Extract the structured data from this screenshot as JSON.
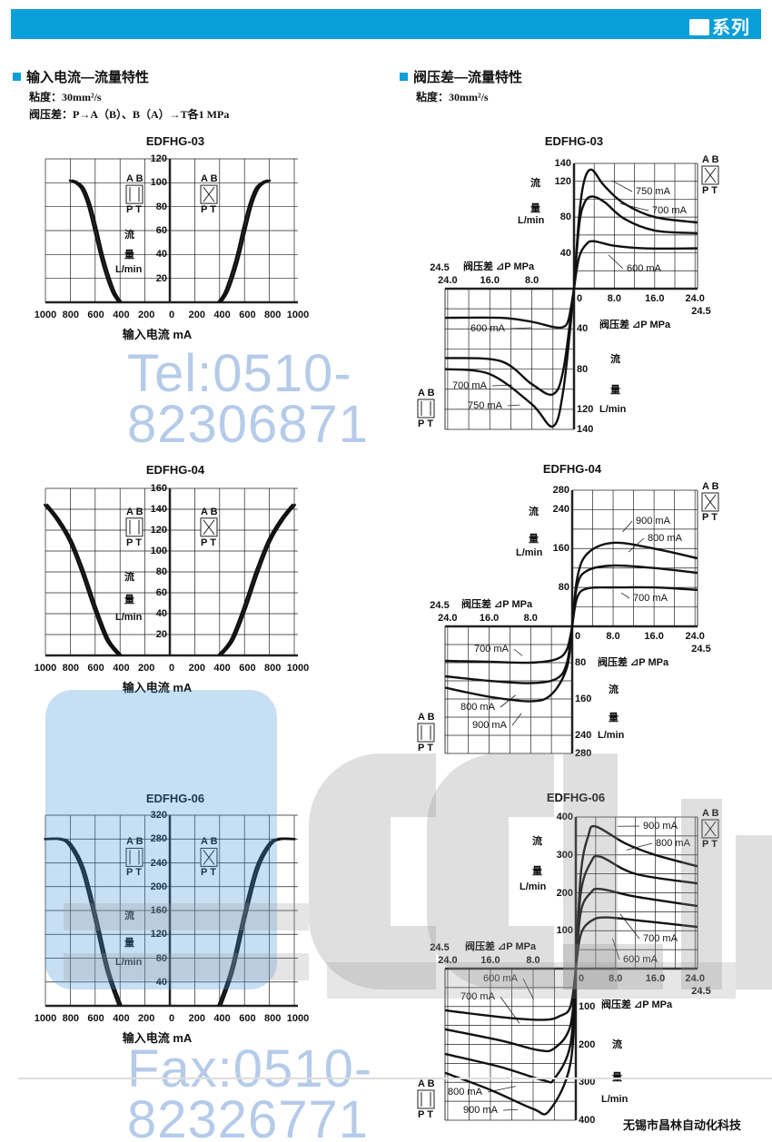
{
  "header": {
    "series_label": "系列",
    "brand_color": "#0a9fd8"
  },
  "left_section": {
    "title": "输入电流—流量特性",
    "viscosity": "粘度：30mm²/s",
    "pressure": "阀压差：P→A（B）、B（A）→T各1 MPa"
  },
  "right_section": {
    "title": "阀压差—流量特性",
    "viscosity": "粘度：30mm²/s"
  },
  "watermark": {
    "tel": "Tel:0510-82306871",
    "fax": "Fax:0510-82326771",
    "logo_text": "CCLair 昌林自动化"
  },
  "footer": {
    "company": "无锡市昌林自动化科技"
  },
  "chart_data": [
    {
      "type": "line",
      "title": "EDFHG-03",
      "xlabel": "输入电流  mA",
      "ylabel": [
        "流",
        "量"
      ],
      "yunit": "L/min",
      "xticks": [
        "1000",
        "800",
        "600",
        "400",
        "200",
        "0",
        "200",
        "400",
        "600",
        "800",
        "1000"
      ],
      "xlim": [
        -1000,
        1000
      ],
      "ylim": [
        0,
        120
      ],
      "yticks": [
        20,
        40,
        60,
        80,
        100,
        120
      ],
      "grid": true,
      "valves": {
        "left": {
          "top": "A B",
          "bottom": "P T",
          "kind": "parallel"
        },
        "right": {
          "top": "A B",
          "bottom": "P T",
          "kind": "cross"
        }
      },
      "series": [
        {
          "side": "left",
          "points": [
            [
              400,
              0
            ],
            [
              450,
              8
            ],
            [
              500,
              22
            ],
            [
              550,
              40
            ],
            [
              600,
              62
            ],
            [
              650,
              82
            ],
            [
              700,
              95
            ],
            [
              750,
              100
            ],
            [
              800,
              102
            ]
          ]
        },
        {
          "side": "right",
          "points": [
            [
              400,
              0
            ],
            [
              450,
              8
            ],
            [
              500,
              22
            ],
            [
              550,
              40
            ],
            [
              600,
              62
            ],
            [
              650,
              82
            ],
            [
              700,
              95
            ],
            [
              750,
              100
            ],
            [
              800,
              102
            ]
          ]
        }
      ]
    },
    {
      "type": "line",
      "title": "EDFHG-04",
      "xlabel": "输入电流  mA",
      "ylabel": [
        "流",
        "量"
      ],
      "yunit": "L/min",
      "xticks": [
        "1000",
        "800",
        "600",
        "400",
        "200",
        "0",
        "200",
        "400",
        "600",
        "800",
        "1000"
      ],
      "xlim": [
        -1000,
        1000
      ],
      "ylim": [
        0,
        160
      ],
      "yticks": [
        20,
        40,
        60,
        80,
        100,
        120,
        140,
        160
      ],
      "grid": true,
      "valves": {
        "left": {
          "top": "A B",
          "bottom": "P T",
          "kind": "parallel"
        },
        "right": {
          "top": "A B",
          "bottom": "P T",
          "kind": "cross"
        }
      },
      "series": [
        {
          "side": "left",
          "points": [
            [
              400,
              0
            ],
            [
              500,
              15
            ],
            [
              600,
              45
            ],
            [
              700,
              80
            ],
            [
              800,
              110
            ],
            [
              900,
              130
            ],
            [
              1000,
              145
            ]
          ]
        },
        {
          "side": "right",
          "points": [
            [
              400,
              0
            ],
            [
              500,
              15
            ],
            [
              600,
              45
            ],
            [
              700,
              80
            ],
            [
              800,
              110
            ],
            [
              900,
              130
            ],
            [
              1000,
              145
            ]
          ]
        }
      ]
    },
    {
      "type": "line",
      "title": "EDFHG-06",
      "xlabel": "输入电流  mA",
      "ylabel": [
        "流",
        "量"
      ],
      "yunit": "L/min",
      "xticks": [
        "1000",
        "800",
        "600",
        "400",
        "200",
        "0",
        "200",
        "400",
        "600",
        "800",
        "1000"
      ],
      "xlim": [
        -1000,
        1000
      ],
      "ylim": [
        0,
        320
      ],
      "yticks": [
        40,
        80,
        120,
        160,
        200,
        240,
        280,
        320
      ],
      "grid": true,
      "valves": {
        "left": {
          "top": "A B",
          "bottom": "P T",
          "kind": "parallel"
        },
        "right": {
          "top": "A B",
          "bottom": "P T",
          "kind": "cross"
        }
      },
      "series": [
        {
          "side": "left",
          "points": [
            [
              400,
              0
            ],
            [
              500,
              60
            ],
            [
              600,
              150
            ],
            [
              700,
              230
            ],
            [
              800,
              270
            ],
            [
              880,
              280
            ],
            [
              1000,
              280
            ]
          ]
        },
        {
          "side": "right",
          "points": [
            [
              400,
              0
            ],
            [
              500,
              60
            ],
            [
              600,
              150
            ],
            [
              700,
              230
            ],
            [
              800,
              270
            ],
            [
              880,
              280
            ],
            [
              1000,
              280
            ]
          ]
        }
      ]
    },
    {
      "type": "line",
      "title": "EDFHG-03",
      "xlabel": "阀压差 ⊿P  MPa",
      "ylabel": [
        "流",
        "量"
      ],
      "yunit": "L/min",
      "xlim": [
        0,
        24.5
      ],
      "xticks": [
        "8.0",
        "16.0",
        "24.0"
      ],
      "x_zero": "0",
      "x_end": "24.5",
      "ylim": [
        0,
        140
      ],
      "yticks_upper": [
        40,
        80,
        120,
        140
      ],
      "yticks_lower": [
        40,
        80,
        120,
        140
      ],
      "grid_step": 20,
      "grid": true,
      "valves": {
        "upper": {
          "top": "A B",
          "bottom": "P T",
          "kind": "cross"
        },
        "lower": {
          "top": "A B",
          "bottom": "P T",
          "kind": "parallel"
        }
      },
      "series": [
        {
          "name": "750 mA",
          "quadrant": "upper-right",
          "points": [
            [
              0,
              0
            ],
            [
              1,
              80
            ],
            [
              2,
              120
            ],
            [
              3.5,
              133
            ],
            [
              6,
              115
            ],
            [
              10,
              95
            ],
            [
              16,
              80
            ],
            [
              24.5,
              74
            ]
          ]
        },
        {
          "name": "700 mA",
          "quadrant": "upper-right",
          "points": [
            [
              0,
              0
            ],
            [
              1,
              70
            ],
            [
              2,
              95
            ],
            [
              3.5,
              103
            ],
            [
              6,
              97
            ],
            [
              10,
              78
            ],
            [
              16,
              65
            ],
            [
              24.5,
              62
            ]
          ]
        },
        {
          "name": "600 mA",
          "quadrant": "upper-right",
          "points": [
            [
              0,
              0
            ],
            [
              1,
              35
            ],
            [
              2.5,
              50
            ],
            [
              4,
              53
            ],
            [
              8,
              48
            ],
            [
              14,
              45
            ],
            [
              24.5,
              45
            ]
          ]
        },
        {
          "name": "600 mA",
          "quadrant": "lower-left",
          "points": [
            [
              0,
              0
            ],
            [
              1,
              30
            ],
            [
              2,
              38
            ],
            [
              4,
              38
            ],
            [
              8,
              33
            ],
            [
              14,
              29
            ],
            [
              24.5,
              29
            ]
          ]
        },
        {
          "name": "700 mA",
          "quadrant": "lower-left",
          "points": [
            [
              0,
              0
            ],
            [
              2,
              80
            ],
            [
              4,
              105
            ],
            [
              8,
              95
            ],
            [
              14,
              72
            ],
            [
              24.5,
              69
            ]
          ]
        },
        {
          "name": "750 mA",
          "quadrant": "lower-left",
          "points": [
            [
              0,
              0
            ],
            [
              2,
              100
            ],
            [
              4,
              137
            ],
            [
              8,
              115
            ],
            [
              16,
              85
            ],
            [
              24.5,
              80
            ]
          ]
        }
      ]
    },
    {
      "type": "line",
      "title": "EDFHG-04",
      "xlabel": "阀压差 ⊿P  MPa",
      "ylabel": [
        "流",
        "量"
      ],
      "yunit": "L/min",
      "xlim": [
        0,
        24.5
      ],
      "xticks": [
        "8.0",
        "16.0",
        "24.0"
      ],
      "x_zero": "0",
      "x_end": "24.5",
      "ylim": [
        0,
        280
      ],
      "yticks_upper": [
        80,
        160,
        240,
        280
      ],
      "yticks_lower": [
        80,
        160,
        240,
        280
      ],
      "grid_step": 40,
      "grid": true,
      "valves": {
        "upper": {
          "top": "A B",
          "bottom": "P T",
          "kind": "cross"
        },
        "lower": {
          "top": "A B",
          "bottom": "P T",
          "kind": "parallel"
        }
      },
      "series": [
        {
          "name": "900 mA",
          "quadrant": "upper-right",
          "points": [
            [
              0,
              0
            ],
            [
              1,
              100
            ],
            [
              3,
              150
            ],
            [
              8,
              172
            ],
            [
              16,
              160
            ],
            [
              24.5,
              140
            ]
          ]
        },
        {
          "name": "800 mA",
          "quadrant": "upper-right",
          "points": [
            [
              0,
              0
            ],
            [
              1,
              85
            ],
            [
              3,
              115
            ],
            [
              8,
              125
            ],
            [
              16,
              120
            ],
            [
              24.5,
              110
            ]
          ]
        },
        {
          "name": "700 mA",
          "quadrant": "upper-right",
          "points": [
            [
              0,
              0
            ],
            [
              1,
              60
            ],
            [
              3,
              78
            ],
            [
              8,
              80
            ],
            [
              16,
              80
            ],
            [
              24.5,
              75
            ]
          ]
        },
        {
          "name": "700 mA",
          "quadrant": "lower-left",
          "points": [
            [
              0,
              0
            ],
            [
              1,
              50
            ],
            [
              3,
              72
            ],
            [
              8,
              80
            ],
            [
              16,
              78
            ],
            [
              24.5,
              76
            ]
          ]
        },
        {
          "name": "800 mA",
          "quadrant": "lower-left",
          "points": [
            [
              0,
              0
            ],
            [
              1,
              80
            ],
            [
              3,
              115
            ],
            [
              8,
              125
            ],
            [
              16,
              120
            ],
            [
              24.5,
              110
            ]
          ]
        },
        {
          "name": "900 mA",
          "quadrant": "lower-left",
          "points": [
            [
              0,
              0
            ],
            [
              1,
              90
            ],
            [
              4,
              150
            ],
            [
              8,
              165
            ],
            [
              16,
              155
            ],
            [
              24.5,
              135
            ]
          ]
        }
      ]
    },
    {
      "type": "line",
      "title": "EDFHG-06",
      "xlabel": "阀压差 ⊿P  MPa",
      "ylabel": [
        "流",
        "量"
      ],
      "yunit": "L/min",
      "xlim": [
        0,
        24.5
      ],
      "xticks": [
        "8.0",
        "16.0",
        "24.0"
      ],
      "x_zero": "0",
      "x_end": "24.5",
      "ylim": [
        0,
        400
      ],
      "yticks_upper": [
        100,
        200,
        300,
        400
      ],
      "yticks_lower": [
        100,
        200,
        300,
        400
      ],
      "grid_step": 50,
      "grid": true,
      "valves": {
        "upper": {
          "top": "A B",
          "bottom": "P T",
          "kind": "cross"
        },
        "lower": {
          "top": "A B",
          "bottom": "P T",
          "kind": "parallel"
        }
      },
      "series": [
        {
          "name": "900 mA",
          "quadrant": "upper-right",
          "points": [
            [
              0,
              0
            ],
            [
              1,
              250
            ],
            [
              2.5,
              350
            ],
            [
              4,
              375
            ],
            [
              10,
              330
            ],
            [
              16,
              300
            ],
            [
              24.5,
              270
            ]
          ]
        },
        {
          "name": "800 mA",
          "quadrant": "upper-right",
          "points": [
            [
              0,
              0
            ],
            [
              1,
              200
            ],
            [
              3,
              280
            ],
            [
              5,
              295
            ],
            [
              12,
              250
            ],
            [
              24.5,
              225
            ]
          ]
        },
        {
          "name": "700 mA",
          "quadrant": "upper-right",
          "points": [
            [
              0,
              0
            ],
            [
              1,
              150
            ],
            [
              3,
              200
            ],
            [
              5,
              210
            ],
            [
              12,
              190
            ],
            [
              24.5,
              165
            ]
          ]
        },
        {
          "name": "600 mA",
          "quadrant": "upper-right",
          "points": [
            [
              0,
              0
            ],
            [
              1,
              90
            ],
            [
              3,
              125
            ],
            [
              6,
              135
            ],
            [
              14,
              125
            ],
            [
              24.5,
              110
            ]
          ]
        },
        {
          "name": "600 mA",
          "quadrant": "lower-left",
          "points": [
            [
              0,
              0
            ],
            [
              1,
              100
            ],
            [
              3,
              125
            ],
            [
              6,
              135
            ],
            [
              14,
              128
            ],
            [
              24.5,
              110
            ]
          ]
        },
        {
          "name": "700 mA",
          "quadrant": "lower-left",
          "points": [
            [
              0,
              0
            ],
            [
              1,
              150
            ],
            [
              4,
              210
            ],
            [
              7,
              215
            ],
            [
              14,
              190
            ],
            [
              24.5,
              160
            ]
          ]
        },
        {
          "name": "800 mA",
          "quadrant": "lower-left",
          "points": [
            [
              0,
              0
            ],
            [
              1,
              200
            ],
            [
              4,
              290
            ],
            [
              6,
              295
            ],
            [
              14,
              260
            ],
            [
              24.5,
              225
            ]
          ]
        },
        {
          "name": "900 mA",
          "quadrant": "lower-left",
          "points": [
            [
              0,
              0
            ],
            [
              1,
              250
            ],
            [
              5,
              375
            ],
            [
              8,
              370
            ],
            [
              16,
              320
            ],
            [
              24.5,
              275
            ]
          ]
        }
      ]
    }
  ]
}
